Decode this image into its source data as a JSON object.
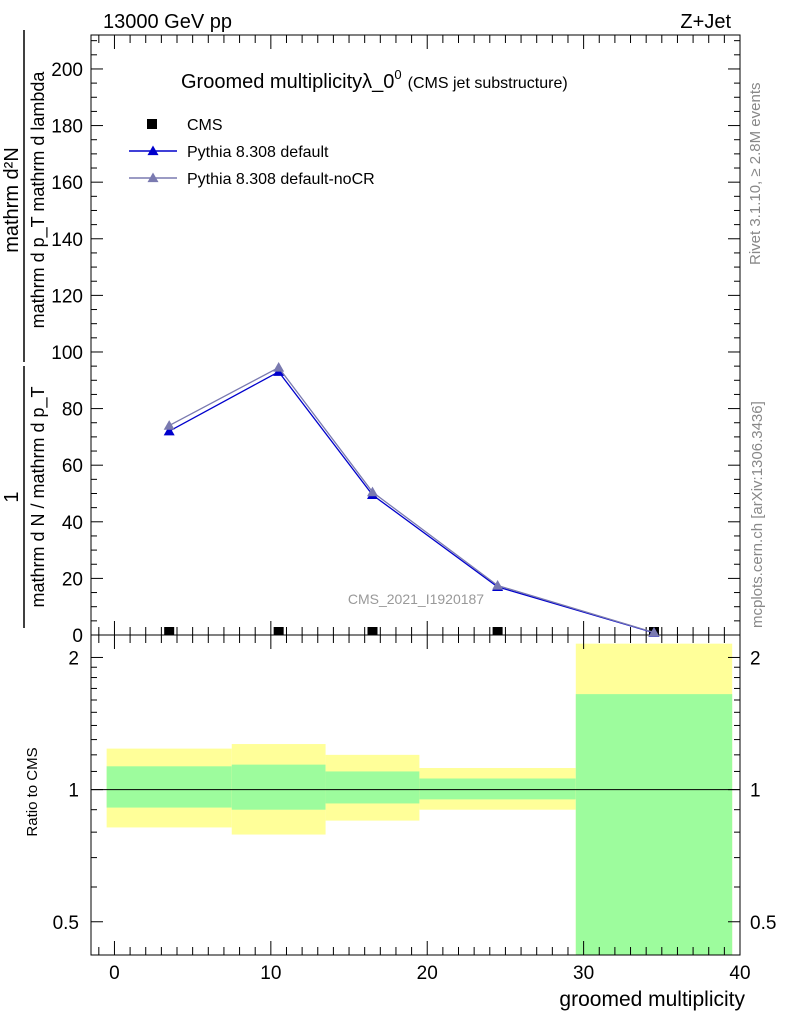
{
  "header": {
    "left": "13000 GeV pp",
    "right": "Z+Jet"
  },
  "side": {
    "rivet": "Rivet 3.1.10, ≥ 2.8M events",
    "mcplots": "mcplots.cern.ch [arXiv:1306.3436]"
  },
  "chart_data": {
    "type": "line",
    "title": "Groomed multiplicityλ_0",
    "title_sup": "0",
    "title_suffix": "(CMS jet substructure)",
    "xlabel": "groomed multiplicity",
    "ylabel_num": "mathrm d²N",
    "ylabel_den": "mathrm d p_T mathrm d lambda",
    "ylabel_prefix": "1",
    "ylabel_prefix_den": "mathrm d N / mathrm d p_T",
    "watermark": "CMS_2021_I1920187",
    "xlim": [
      -1.5,
      40
    ],
    "ylim": [
      0,
      212
    ],
    "yticks": [
      0,
      20,
      40,
      60,
      80,
      100,
      120,
      140,
      160,
      180,
      200
    ],
    "xticks": [
      0,
      10,
      20,
      30,
      40
    ],
    "legend": [
      "CMS",
      "Pythia 8.308 default",
      "Pythia 8.308 default-noCR"
    ],
    "series": [
      {
        "name": "CMS",
        "color": "#000000",
        "marker": "square",
        "x": [
          3.5,
          10.5,
          16.5,
          24.5,
          34.5
        ],
        "y": [
          0.3,
          0.3,
          0.3,
          0.3,
          0.3
        ]
      },
      {
        "name": "Pythia 8.308 default",
        "color": "#0000cc",
        "marker": "triangle",
        "x": [
          3.5,
          10.5,
          16.5,
          24.5,
          34.5
        ],
        "y": [
          72,
          93,
          49.5,
          17,
          0.8
        ]
      },
      {
        "name": "Pythia 8.308 default-noCR",
        "color": "#7a7ab0",
        "marker": "triangle",
        "x": [
          3.5,
          10.5,
          16.5,
          24.5,
          34.5
        ],
        "y": [
          74,
          94.5,
          50.5,
          17.5,
          0.9
        ]
      }
    ],
    "ratio": {
      "ylabel": "Ratio to CMS",
      "ylim": [
        0.42,
        2.25
      ],
      "yticks": [
        0.5,
        1,
        2
      ],
      "ytick_labels": [
        "0.5",
        "1",
        "2"
      ],
      "bins": [
        {
          "lo": -0.5,
          "hi": 7.5,
          "stat_lo": 0.91,
          "stat_hi": 1.13,
          "tot_lo": 0.82,
          "tot_hi": 1.24
        },
        {
          "lo": 7.5,
          "hi": 13.5,
          "stat_lo": 0.9,
          "stat_hi": 1.14,
          "tot_lo": 0.79,
          "tot_hi": 1.27
        },
        {
          "lo": 13.5,
          "hi": 19.5,
          "stat_lo": 0.93,
          "stat_hi": 1.1,
          "tot_lo": 0.85,
          "tot_hi": 1.2
        },
        {
          "lo": 19.5,
          "hi": 29.5,
          "stat_lo": 0.95,
          "stat_hi": 1.06,
          "tot_lo": 0.9,
          "tot_hi": 1.12
        },
        {
          "lo": 29.5,
          "hi": 39.5,
          "stat_lo": 0.42,
          "stat_hi": 1.65,
          "tot_lo": 0.42,
          "tot_hi": 2.15
        }
      ],
      "colors": {
        "stat": "#9dfc9d",
        "total": "#ffff99"
      }
    }
  }
}
